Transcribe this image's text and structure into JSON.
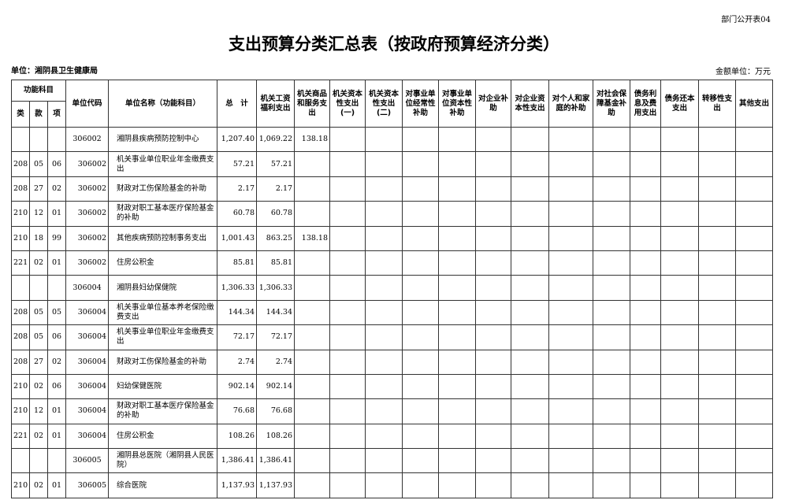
{
  "corner_label": "部门公开表04",
  "title": "支出预算分类汇总表（按政府预算经济分类）",
  "unit": "单位：湘阴县卫生健康局",
  "money_unit": "金额单位：万元",
  "headers": {
    "func": "功能科目",
    "lei": "类",
    "kuan": "款",
    "xiang": "项",
    "code": "单位代码",
    "name": "单位名称（功能科目）",
    "total": "总　计",
    "cols": [
      "机关工资福利支出",
      "机关商品和服务支出",
      "机关资本性支出(一)",
      "机关资本性支出(二)",
      "对事业单位经常性补助",
      "对事业单位资本性补助",
      "对企业补助",
      "对企业资本性支出",
      "对个人和家庭的补助",
      "对社会保障基金补助",
      "债务利息及费用支出",
      "债务还本支出",
      "转移性支出",
      "其他支出"
    ]
  },
  "rows": [
    {
      "lei": "",
      "kuan": "",
      "xiang": "",
      "code": "306002",
      "name": "湘阴县疾病预防控制中心",
      "total": "1,207.40",
      "v": [
        "1,069.22",
        "138.18"
      ]
    },
    {
      "lei": "208",
      "kuan": "05",
      "xiang": "06",
      "code": "306002",
      "name": "机关事业单位职业年金缴费支出",
      "total": "57.21",
      "v": [
        "57.21",
        ""
      ]
    },
    {
      "lei": "208",
      "kuan": "27",
      "xiang": "02",
      "code": "306002",
      "name": "财政对工伤保险基金的补助",
      "total": "2.17",
      "v": [
        "2.17",
        ""
      ]
    },
    {
      "lei": "210",
      "kuan": "12",
      "xiang": "01",
      "code": "306002",
      "name": "财政对职工基本医疗保险基金的补助",
      "total": "60.78",
      "v": [
        "60.78",
        ""
      ]
    },
    {
      "lei": "210",
      "kuan": "18",
      "xiang": "99",
      "code": "306002",
      "name": "其他疾病预防控制事务支出",
      "total": "1,001.43",
      "v": [
        "863.25",
        "138.18"
      ]
    },
    {
      "lei": "221",
      "kuan": "02",
      "xiang": "01",
      "code": "306002",
      "name": "住房公积金",
      "total": "85.81",
      "v": [
        "85.81",
        ""
      ]
    },
    {
      "lei": "",
      "kuan": "",
      "xiang": "",
      "code": "306004",
      "name": "湘阴县妇幼保健院",
      "total": "1,306.33",
      "v": [
        "1,306.33",
        ""
      ]
    },
    {
      "lei": "208",
      "kuan": "05",
      "xiang": "05",
      "code": "306004",
      "name": "机关事业单位基本养老保险缴费支出",
      "total": "144.34",
      "v": [
        "144.34",
        ""
      ]
    },
    {
      "lei": "208",
      "kuan": "05",
      "xiang": "06",
      "code": "306004",
      "name": "机关事业单位职业年金缴费支出",
      "total": "72.17",
      "v": [
        "72.17",
        ""
      ]
    },
    {
      "lei": "208",
      "kuan": "27",
      "xiang": "02",
      "code": "306004",
      "name": "财政对工伤保险基金的补助",
      "total": "2.74",
      "v": [
        "2.74",
        ""
      ]
    },
    {
      "lei": "210",
      "kuan": "02",
      "xiang": "06",
      "code": "306004",
      "name": "妇幼保健医院",
      "total": "902.14",
      "v": [
        "902.14",
        ""
      ]
    },
    {
      "lei": "210",
      "kuan": "12",
      "xiang": "01",
      "code": "306004",
      "name": "财政对职工基本医疗保险基金的补助",
      "total": "76.68",
      "v": [
        "76.68",
        ""
      ]
    },
    {
      "lei": "221",
      "kuan": "02",
      "xiang": "01",
      "code": "306004",
      "name": "住房公积金",
      "total": "108.26",
      "v": [
        "108.26",
        ""
      ]
    },
    {
      "lei": "",
      "kuan": "",
      "xiang": "",
      "code": "306005",
      "name": "湘阴县总医院（湘阴县人民医院）",
      "total": "1,386.41",
      "v": [
        "1,386.41",
        ""
      ]
    },
    {
      "lei": "210",
      "kuan": "02",
      "xiang": "01",
      "code": "306005",
      "name": "综合医院",
      "total": "1,137.93",
      "v": [
        "1,137.93",
        ""
      ]
    }
  ]
}
